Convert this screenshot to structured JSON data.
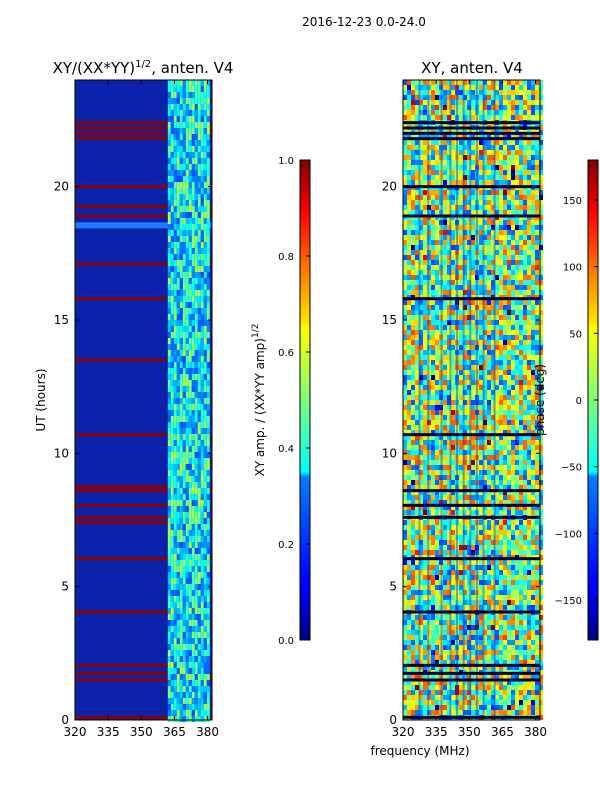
{
  "suptitle": "2016-12-23 0.0-24.0",
  "chart_data": [
    {
      "type": "heatmap",
      "title_prefix": "XY/(XX*YY)",
      "title_power": "1/2",
      "title_suffix": ", anten. V4",
      "xlabel": "",
      "ylabel": "UT (hours)",
      "x_range": [
        320,
        382
      ],
      "y_range": [
        0,
        24
      ],
      "x_ticks": [
        320,
        335,
        350,
        365,
        380
      ],
      "y_ticks": [
        0,
        5,
        10,
        15,
        20
      ],
      "colorbar": {
        "label_prefix": "XY amp. / (XX*YY amp)",
        "label_power": "1/2",
        "range": [
          0.0,
          1.0
        ],
        "ticks": [
          "0.0",
          "0.2",
          "0.4",
          "0.6",
          "0.8",
          "1.0"
        ],
        "tick_values": [
          0.0,
          0.2,
          0.4,
          0.6,
          0.8,
          1.0
        ],
        "colormap": "jet"
      },
      "saturated_rows_ut": [
        0.1,
        1.5,
        1.75,
        2.05,
        4.05,
        6.05,
        7.4,
        7.6,
        8.05,
        8.6,
        8.75,
        10.7,
        13.5,
        15.8,
        17.1,
        18.9,
        19.25,
        20.0,
        21.8,
        22.0,
        22.2,
        22.4
      ],
      "bright_band_mhz": [
        362,
        381
      ]
    },
    {
      "type": "heatmap",
      "title": "XY, anten. V4",
      "xlabel": "frequency (MHz)",
      "ylabel": "",
      "x_range": [
        320,
        382
      ],
      "y_range": [
        0,
        24
      ],
      "x_ticks": [
        320,
        335,
        350,
        365,
        380
      ],
      "y_ticks": [
        0,
        5,
        10,
        15,
        20
      ],
      "colorbar": {
        "label": "phase (deg)",
        "range": [
          -180,
          180
        ],
        "ticks": [
          "150",
          "100",
          "50",
          "0",
          "−50",
          "−100",
          "−150"
        ],
        "tick_values": [
          150,
          100,
          50,
          0,
          -50,
          -100,
          -150
        ],
        "colormap": "jet"
      },
      "dark_rows_ut": [
        0.1,
        1.5,
        1.75,
        2.05,
        4.05,
        6.05,
        7.6,
        8.05,
        8.6,
        10.7,
        15.8,
        18.9,
        20.0,
        21.8,
        22.0,
        22.2,
        22.4
      ]
    }
  ]
}
